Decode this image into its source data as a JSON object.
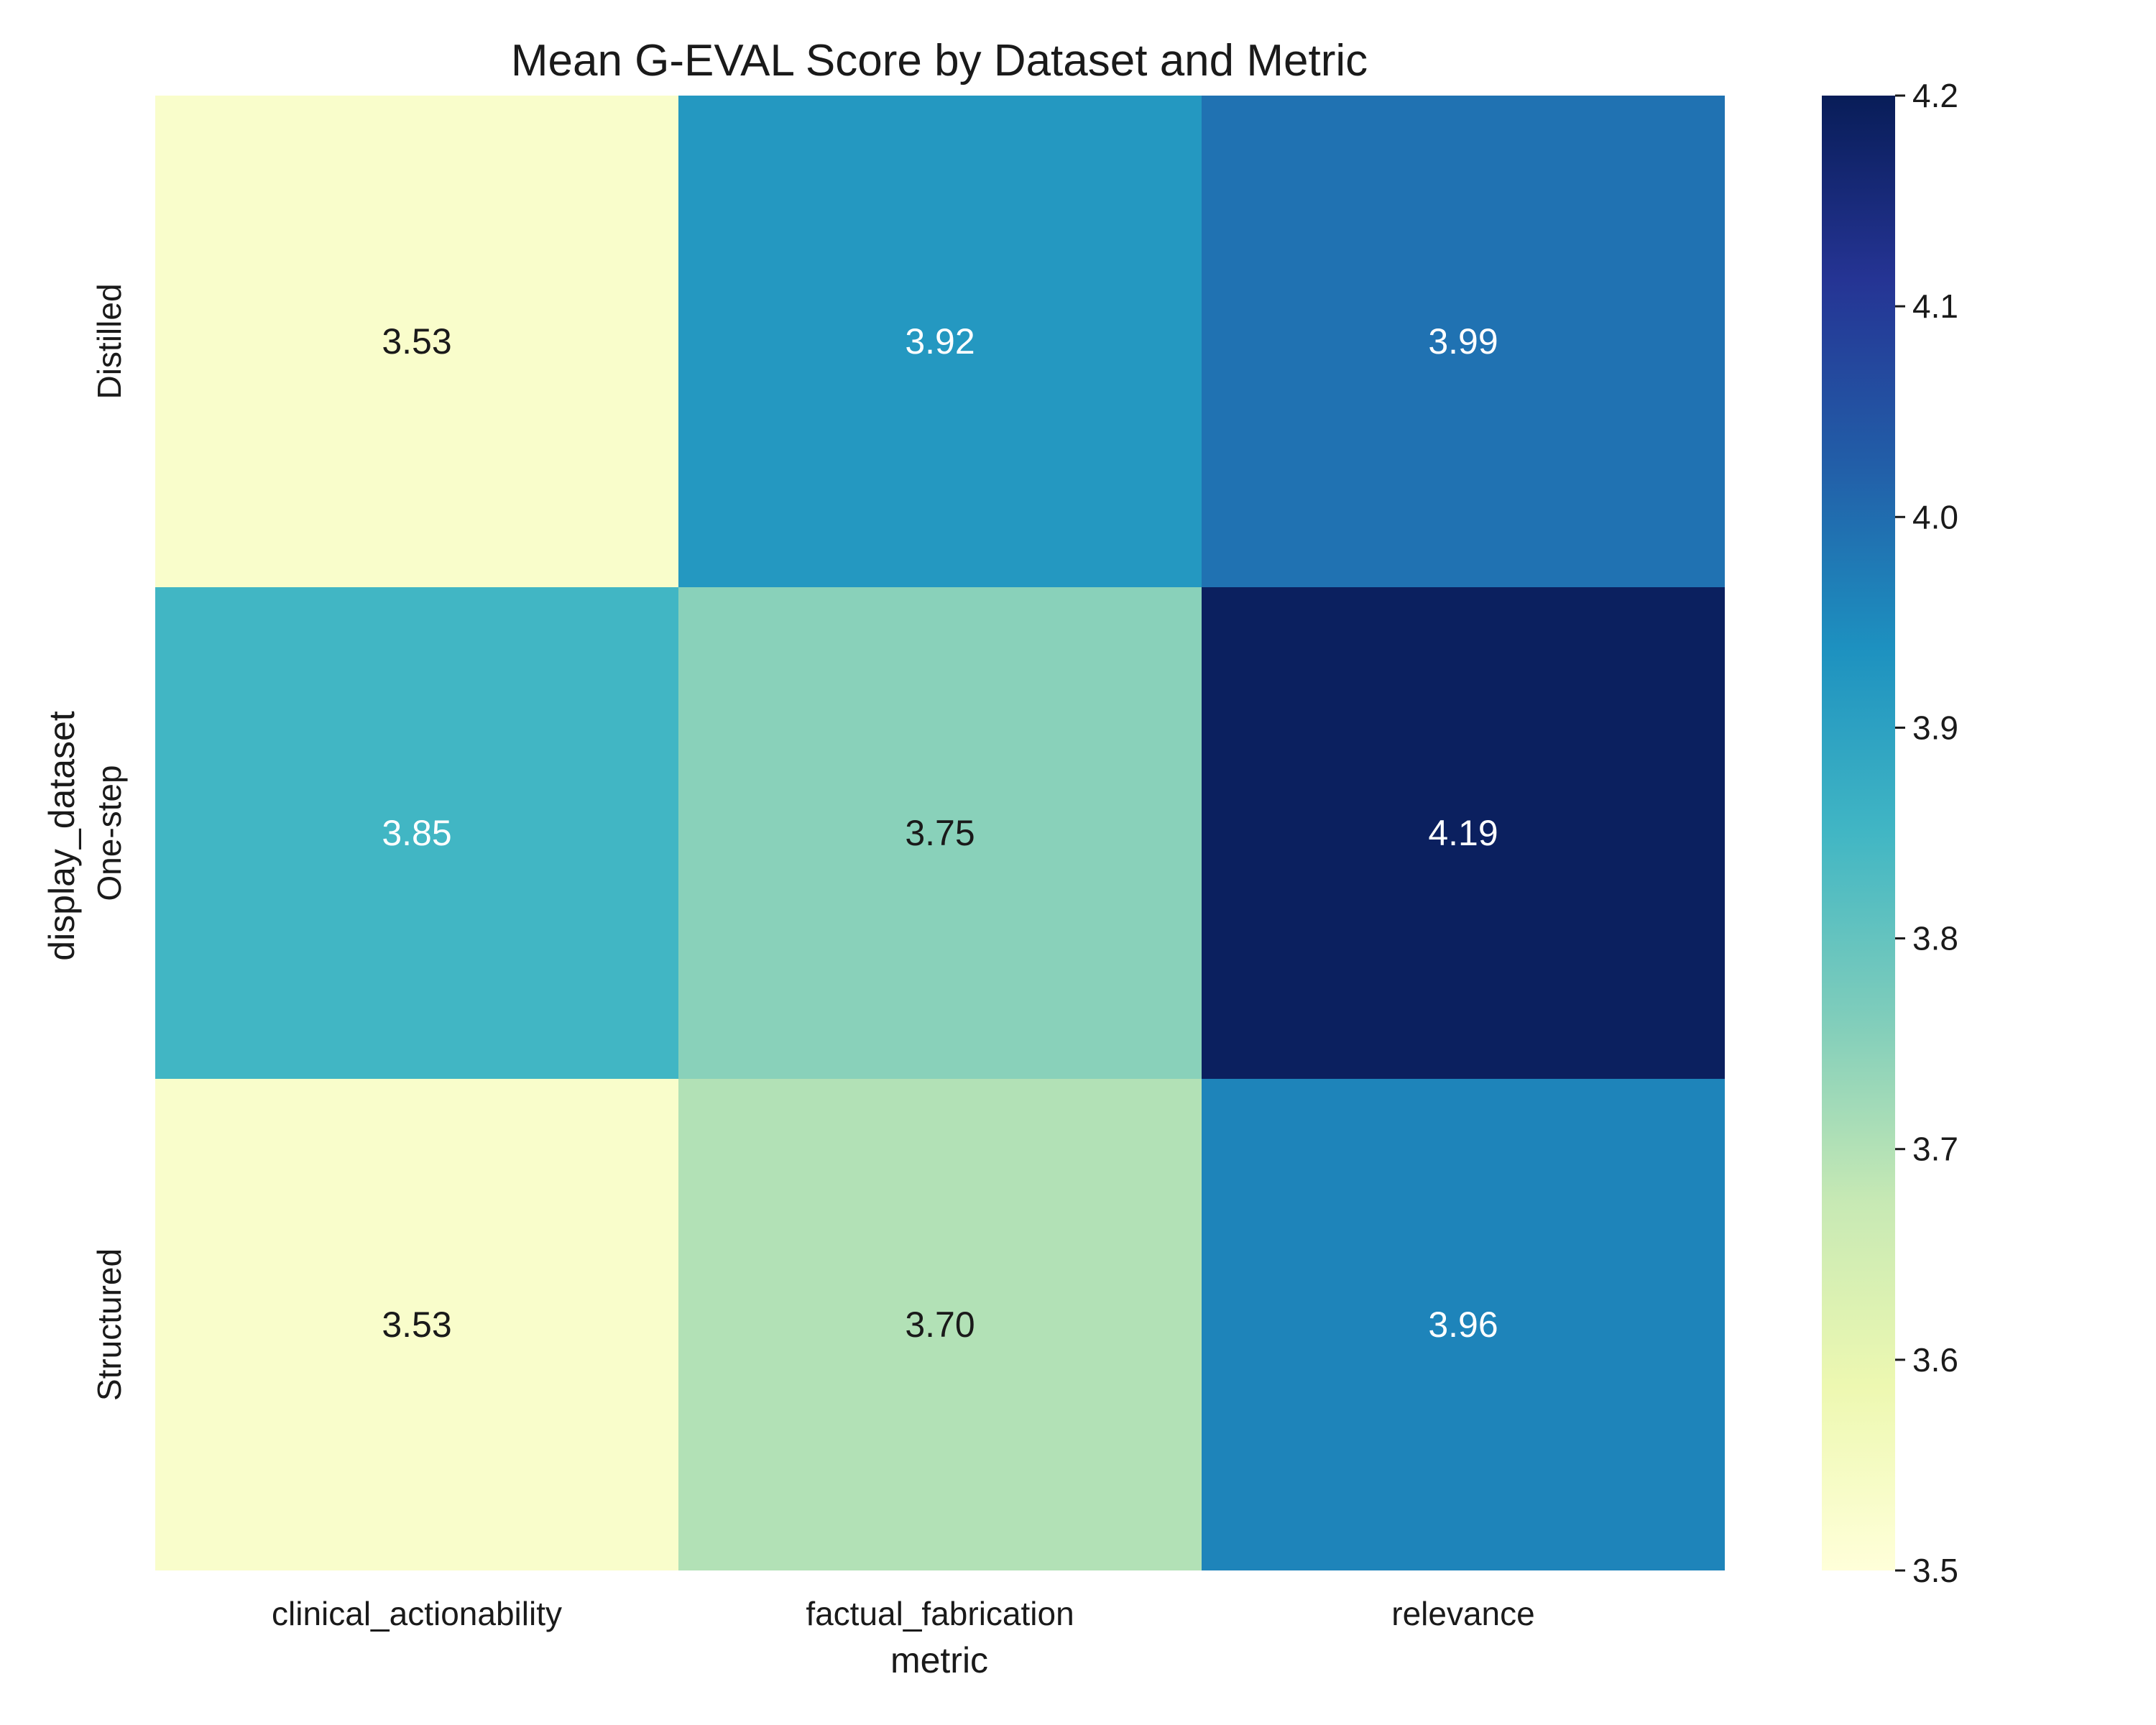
{
  "chart_data": {
    "type": "heatmap",
    "title": "Mean G-EVAL Score by Dataset and Metric",
    "xlabel": "metric",
    "ylabel": "display_dataset",
    "x_categories": [
      "clinical_actionability",
      "factual_fabrication",
      "relevance"
    ],
    "y_categories": [
      "Distilled",
      "One-step",
      "Structured"
    ],
    "values": [
      [
        3.53,
        3.92,
        3.99
      ],
      [
        3.85,
        3.75,
        4.19
      ],
      [
        3.53,
        3.7,
        3.96
      ]
    ],
    "value_labels": [
      [
        "3.53",
        "3.92",
        "3.99"
      ],
      [
        "3.85",
        "3.75",
        "4.19"
      ],
      [
        "3.53",
        "3.70",
        "3.96"
      ]
    ],
    "colormap": "YlGnBu",
    "colorbar": {
      "vmin": 3.5,
      "vmax": 4.2,
      "ticks": [
        3.5,
        3.6,
        3.7,
        3.8,
        3.9,
        4.0,
        4.1,
        4.2
      ],
      "tick_labels": [
        "3.5",
        "3.6",
        "3.7",
        "3.8",
        "3.9",
        "4.0",
        "4.1",
        "4.2"
      ]
    }
  }
}
